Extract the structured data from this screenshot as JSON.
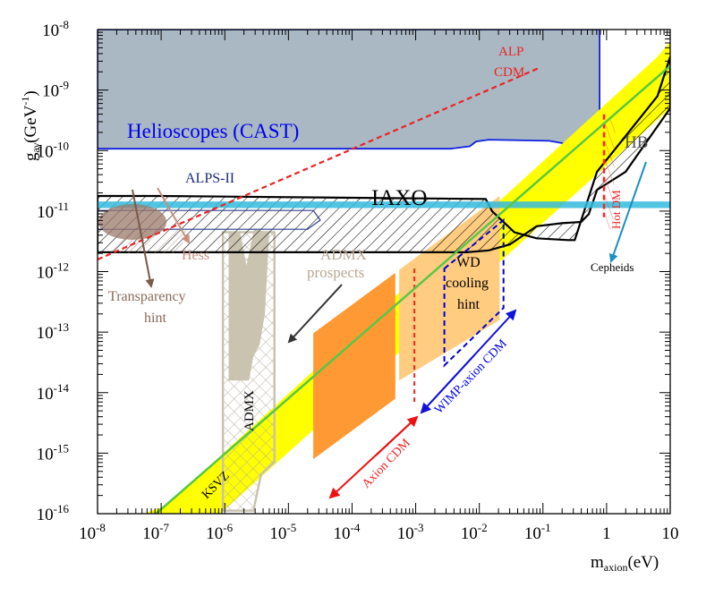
{
  "chart_data": {
    "type": "area",
    "title": "",
    "xlabel": "m",
    "xlabel_sub": "axion",
    "xlabel_unit": "(eV)",
    "ylabel": "g",
    "ylabel_sub": "aγ",
    "ylabel_unit": "(GeV",
    "ylabel_unit_sup": "-1",
    "ylabel_unit_close": ")",
    "xscale": "log",
    "yscale": "log",
    "xlim_log10": [
      -8,
      1
    ],
    "ylim_log10": [
      -16,
      -8
    ],
    "x_ticks": [
      {
        "base": "10",
        "exp": "-8",
        "log": -8
      },
      {
        "base": "10",
        "exp": "-7",
        "log": -7
      },
      {
        "base": "10",
        "exp": "-6",
        "log": -6
      },
      {
        "base": "10",
        "exp": "-5",
        "log": -5
      },
      {
        "base": "10",
        "exp": "-4",
        "log": -4
      },
      {
        "base": "10",
        "exp": "-3",
        "log": -3
      },
      {
        "base": "10",
        "exp": "-2",
        "log": -2
      },
      {
        "base": "10",
        "exp": "-1",
        "log": -1
      },
      {
        "base": "1",
        "exp": "",
        "log": 0
      },
      {
        "base": "10",
        "exp": "",
        "log": 1
      }
    ],
    "y_ticks": [
      {
        "base": "10",
        "exp": "-8",
        "log": -8
      },
      {
        "base": "10",
        "exp": "-9",
        "log": -9
      },
      {
        "base": "10",
        "exp": "-10",
        "log": -10
      },
      {
        "base": "10",
        "exp": "-11",
        "log": -11
      },
      {
        "base": "10",
        "exp": "-12",
        "log": -12
      },
      {
        "base": "10",
        "exp": "-13",
        "log": -13
      },
      {
        "base": "10",
        "exp": "-14",
        "log": -14
      },
      {
        "base": "10",
        "exp": "-15",
        "log": -15
      },
      {
        "base": "10",
        "exp": "-16",
        "log": -16
      }
    ],
    "regions": [
      {
        "name": "helioscopes-cast-excluded",
        "label": "Helioscopes (CAST)",
        "color": "#a9b8c3",
        "points_log10": [
          [
            -8,
            -8
          ],
          [
            -0.11,
            -8
          ],
          [
            -0.11,
            -9.9
          ],
          [
            -0.3,
            -9.95
          ],
          [
            -0.9,
            -9.84
          ],
          [
            -1.85,
            -9.82
          ],
          [
            -2.05,
            -9.85
          ],
          [
            -2.15,
            -9.93
          ],
          [
            -2.45,
            -9.97
          ],
          [
            -8,
            -9.97
          ]
        ]
      },
      {
        "name": "axion-model-band",
        "label": "KSVZ",
        "color": "#ffff00",
        "points_log10": [
          [
            -6.93,
            -15.87
          ],
          [
            -7.28,
            -16
          ],
          [
            -6.07,
            -16
          ],
          [
            1,
            -9.3
          ],
          [
            1,
            -8.2
          ],
          [
            0.8,
            -8.45
          ]
        ]
      },
      {
        "name": "axion-cdm-region-light",
        "label": "Axion CDM",
        "color": "#ffcc80",
        "points_log10": [
          [
            -3.26,
            -11.97
          ],
          [
            -1.68,
            -10.75
          ],
          [
            -1.68,
            -12.8
          ],
          [
            -3.26,
            -13.8
          ]
        ]
      },
      {
        "name": "axion-cdm-region-dark",
        "label": "Axion CDM",
        "color": "#ff9933",
        "points_log10": [
          [
            -4.61,
            -13.02
          ],
          [
            -3.32,
            -12.02
          ],
          [
            -3.32,
            -14.1
          ],
          [
            -4.61,
            -15.1
          ]
        ]
      },
      {
        "name": "hb-bound",
        "label": "HB",
        "color": "#33bbdd",
        "points_log10": [
          [
            -8,
            -10.95
          ],
          [
            1,
            -10.95
          ],
          [
            1,
            -10.84
          ],
          [
            -8,
            -10.84
          ]
        ]
      },
      {
        "name": "alps-ii",
        "label": "ALPS-II",
        "color": "#2b3d8f",
        "points_log10": [
          [
            -8,
            -10.99
          ],
          [
            -4.61,
            -10.99
          ],
          [
            -4.5,
            -11.15
          ],
          [
            -4.7,
            -11.3
          ],
          [
            -8,
            -11.3
          ]
        ]
      },
      {
        "name": "transparency-hint",
        "label": "Transparency hint",
        "color": "#9b7a6a",
        "points_log10": [
          [
            -7.6,
            -11.1
          ],
          [
            -7.8,
            -11.35
          ],
          [
            -7.3,
            -11.5
          ],
          [
            -7,
            -11.3
          ],
          [
            -7.2,
            -11.0
          ]
        ]
      },
      {
        "name": "admx-excluded",
        "label": "ADMX",
        "color": "#c9c3b0",
        "points_log10": [
          [
            -5.94,
            -11.35
          ],
          [
            -5.76,
            -11.35
          ],
          [
            -5.66,
            -11.9
          ],
          [
            -5.54,
            -11.3
          ],
          [
            -5.3,
            -11.35
          ],
          [
            -5.37,
            -12.7
          ],
          [
            -5.45,
            -13.2
          ],
          [
            -5.55,
            -13.4
          ],
          [
            -5.62,
            -13.8
          ],
          [
            -5.94,
            -13.8
          ]
        ]
      },
      {
        "name": "admx-prospects",
        "label": "ADMX prospects",
        "color": "#c9c3b0",
        "points_log10": [
          [
            -6.03,
            -11.35
          ],
          [
            -5.22,
            -11.35
          ],
          [
            -5.22,
            -15.15
          ],
          [
            -5.43,
            -15.35
          ],
          [
            -5.55,
            -15.95
          ],
          [
            -6.03,
            -15.95
          ]
        ]
      },
      {
        "name": "iaxo-prospects",
        "label": "IAXO",
        "color": "#000000",
        "points_log10": [
          [
            -8,
            -10.75
          ],
          [
            -7,
            -10.75
          ],
          [
            -1.9,
            -10.8
          ],
          [
            -1.8,
            -11.0
          ],
          [
            -1.45,
            -11.35
          ],
          [
            -1.1,
            -11.45
          ],
          [
            -0.6,
            -11.48
          ],
          [
            -0.5,
            -11.48
          ],
          [
            -0.15,
            -10.35
          ],
          [
            0.8,
            -9.1
          ],
          [
            1,
            -8.45
          ],
          [
            1,
            -9.3
          ],
          [
            0.3,
            -10.35
          ],
          [
            -0.15,
            -10.65
          ],
          [
            -0.28,
            -11.05
          ],
          [
            -0.4,
            -11.18
          ],
          [
            -0.7,
            -11.2
          ],
          [
            -1.1,
            -11.25
          ],
          [
            -1.52,
            -11.55
          ],
          [
            -1.85,
            -11.65
          ],
          [
            -2.2,
            -11.68
          ],
          [
            -8,
            -11.68
          ]
        ]
      },
      {
        "name": "wd-cooling-hint",
        "label": "WD cooling hint",
        "color": "#0000cc",
        "points_log10": [
          [
            -2.55,
            -11.95
          ],
          [
            -1.62,
            -11.15
          ],
          [
            -1.62,
            -12.6
          ],
          [
            -2.55,
            -13.55
          ]
        ]
      },
      {
        "name": "hot-dm",
        "label": "Hot DM",
        "color": "#ff2222",
        "points_log10": [
          [
            -0.04,
            -9.4
          ],
          [
            0.04,
            -9.4
          ],
          [
            0.04,
            -11.0
          ],
          [
            -0.04,
            -11.0
          ]
        ]
      }
    ],
    "lines": [
      {
        "name": "alp-cdm-line",
        "label": "ALP CDM",
        "color": "#ee2222",
        "style": "dashed",
        "points_log10": [
          [
            -8,
            -11.8
          ],
          [
            -1.05,
            -8.63
          ]
        ]
      },
      {
        "name": "ksvz-line",
        "label": "KSVZ",
        "color": "#55c847",
        "style": "solid",
        "points_log10": [
          [
            -7.08,
            -16
          ],
          [
            1,
            -8.6
          ]
        ]
      }
    ],
    "annotations": [
      {
        "name": "helioscopes-label",
        "text": "Helioscopes (CAST)",
        "color": "#0000ee"
      },
      {
        "name": "alp-label-1",
        "text": "ALP",
        "color": "#ee2222"
      },
      {
        "name": "alp-label-2",
        "text": "CDM",
        "color": "#ee2222"
      },
      {
        "name": "alps-label",
        "text": "ALPS-II",
        "color": "#1a2a7a"
      },
      {
        "name": "iaxo-label",
        "text": "IAXO",
        "color": "#000000"
      },
      {
        "name": "hb-label",
        "text": "HB",
        "color": "#555555"
      },
      {
        "name": "hess-label",
        "text": "Hess",
        "color": "#c89080"
      },
      {
        "name": "transparency-label-1",
        "text": "Transparency",
        "color": "#8a6a5a"
      },
      {
        "name": "transparency-label-2",
        "text": "hint",
        "color": "#8a6a5a"
      },
      {
        "name": "admx-prospects-label-1",
        "text": "ADMX",
        "color": "#b7a893"
      },
      {
        "name": "admx-prospects-label-2",
        "text": "prospects",
        "color": "#b7a893"
      },
      {
        "name": "admx-label",
        "text": "ADMX",
        "color": "#000000"
      },
      {
        "name": "wd-label-1",
        "text": "WD",
        "color": "#000000"
      },
      {
        "name": "wd-label-2",
        "text": "cooling",
        "color": "#000000"
      },
      {
        "name": "wd-label-3",
        "text": "hint",
        "color": "#000000"
      },
      {
        "name": "hot-dm-label",
        "text": "Hot DM",
        "color": "#ee2222"
      },
      {
        "name": "cepheids-label",
        "text": "Cepheids",
        "color": "#000000"
      },
      {
        "name": "ksvz-label",
        "text": "KSVZ",
        "color": "#000000"
      },
      {
        "name": "axion-cdm-label",
        "text": "Axion CDM",
        "color": "#ee2222"
      },
      {
        "name": "wimp-axion-cdm-label",
        "text": "WIMP-axion CDM",
        "color": "#0000ee"
      }
    ]
  }
}
